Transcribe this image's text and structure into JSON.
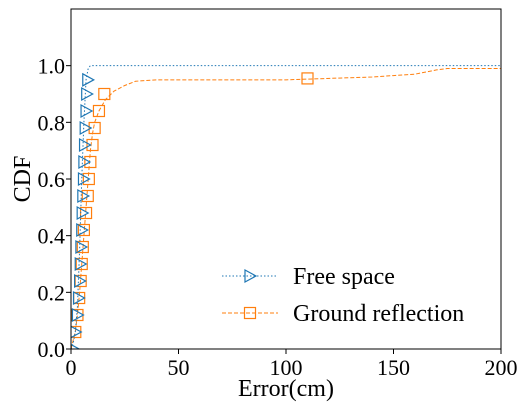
{
  "chart_data": {
    "type": "line",
    "xlabel": "Error(cm)",
    "ylabel": "CDF",
    "xlim": [
      0,
      200
    ],
    "ylim": [
      0,
      1.2
    ],
    "x_ticks": [
      "0",
      "50",
      "100",
      "150",
      "200"
    ],
    "x_tick_values": [
      0,
      50,
      100,
      150,
      200
    ],
    "y_ticks": [
      "0.0",
      "0.2",
      "0.4",
      "0.6",
      "0.8",
      "1.0"
    ],
    "y_tick_values": [
      0.0,
      0.2,
      0.4,
      0.6,
      0.8,
      1.0
    ],
    "grid": false,
    "legend_position": "bottom-right",
    "series": [
      {
        "name": "Free space",
        "color": "#1f77b4",
        "linestyle": "dotted",
        "marker": "triangle-right",
        "line": [
          [
            0,
            0.0
          ],
          [
            1,
            0.02
          ],
          [
            2,
            0.06
          ],
          [
            3,
            0.15
          ],
          [
            4,
            0.35
          ],
          [
            5,
            0.6
          ],
          [
            6,
            0.8
          ],
          [
            7,
            0.95
          ],
          [
            8,
            0.99
          ],
          [
            9,
            1.0
          ],
          [
            200,
            1.0
          ]
        ],
        "markers": [
          [
            1,
            0.0
          ],
          [
            2,
            0.06
          ],
          [
            3,
            0.12
          ],
          [
            3.5,
            0.18
          ],
          [
            4,
            0.24
          ],
          [
            4.3,
            0.3
          ],
          [
            4.6,
            0.36
          ],
          [
            5,
            0.42
          ],
          [
            5.2,
            0.48
          ],
          [
            5.5,
            0.54
          ],
          [
            5.8,
            0.6
          ],
          [
            6,
            0.66
          ],
          [
            6.3,
            0.72
          ],
          [
            6.6,
            0.78
          ],
          [
            7,
            0.84
          ],
          [
            7.3,
            0.9
          ],
          [
            7.8,
            0.95
          ]
        ]
      },
      {
        "name": "Ground reflection",
        "color": "#ff7f0e",
        "linestyle": "dashed",
        "marker": "square",
        "line": [
          [
            0,
            0.0
          ],
          [
            2,
            0.06
          ],
          [
            3,
            0.12
          ],
          [
            4,
            0.2
          ],
          [
            5,
            0.3
          ],
          [
            6,
            0.4
          ],
          [
            7,
            0.5
          ],
          [
            8,
            0.6
          ],
          [
            9,
            0.7
          ],
          [
            10,
            0.76
          ],
          [
            11,
            0.8
          ],
          [
            13,
            0.84
          ],
          [
            16,
            0.88
          ],
          [
            20,
            0.91
          ],
          [
            25,
            0.93
          ],
          [
            30,
            0.945
          ],
          [
            40,
            0.95
          ],
          [
            100,
            0.95
          ],
          [
            140,
            0.96
          ],
          [
            150,
            0.965
          ],
          [
            160,
            0.97
          ],
          [
            170,
            0.985
          ],
          [
            175,
            0.99
          ],
          [
            200,
            0.99
          ]
        ],
        "markers": [
          [
            2,
            0.06
          ],
          [
            3,
            0.12
          ],
          [
            3.8,
            0.18
          ],
          [
            4.5,
            0.24
          ],
          [
            5,
            0.3
          ],
          [
            5.5,
            0.36
          ],
          [
            6,
            0.42
          ],
          [
            7,
            0.48
          ],
          [
            7.8,
            0.54
          ],
          [
            8.3,
            0.6
          ],
          [
            9,
            0.66
          ],
          [
            10,
            0.72
          ],
          [
            11,
            0.78
          ],
          [
            13,
            0.84
          ],
          [
            15.5,
            0.9
          ],
          [
            110,
            0.955
          ]
        ]
      }
    ]
  }
}
